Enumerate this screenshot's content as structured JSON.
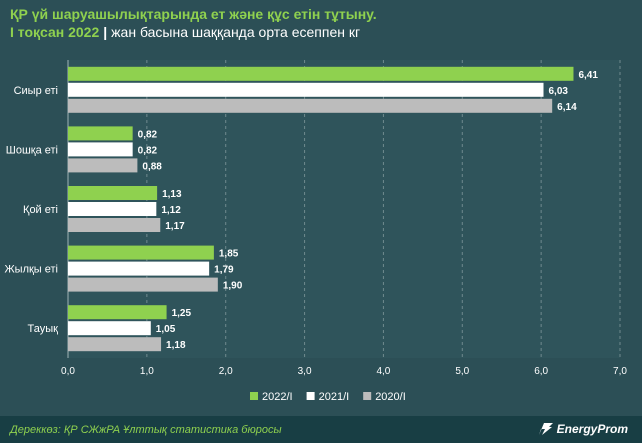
{
  "title": {
    "line1": "ҚР үй шаруашылықтарында ет және құс етін тұтыну.",
    "period": "I тоқсан 2022",
    "separator": "|",
    "unit": "жан басына шаққанда орта есеппен кг"
  },
  "chart_data": {
    "type": "bar",
    "orientation": "horizontal",
    "categories": [
      "Сиыр еті",
      "Шошқа еті",
      "Қой еті",
      "Жылқы еті",
      "Тауық"
    ],
    "series": [
      {
        "name": "2022/I",
        "color": "#8fd14f",
        "values": [
          6.41,
          0.82,
          1.13,
          1.85,
          1.25
        ],
        "labels": [
          "6,41",
          "0,82",
          "1,13",
          "1,85",
          "1,25"
        ]
      },
      {
        "name": "2021/I",
        "color": "#ffffff",
        "values": [
          6.03,
          0.82,
          1.12,
          1.79,
          1.05
        ],
        "labels": [
          "6,03",
          "0,82",
          "1,12",
          "1,79",
          "1,05"
        ]
      },
      {
        "name": "2020/I",
        "color": "#bcbcbc",
        "values": [
          6.14,
          0.88,
          1.17,
          1.9,
          1.18
        ],
        "labels": [
          "6,14",
          "0,88",
          "1,17",
          "1,90",
          "1,18"
        ]
      }
    ],
    "xlim": [
      0,
      7
    ],
    "xticks": [
      0,
      1,
      2,
      3,
      4,
      5,
      6,
      7
    ],
    "xtick_labels": [
      "0,0",
      "1,0",
      "2,0",
      "3,0",
      "4,0",
      "5,0",
      "6,0",
      "7,0"
    ],
    "grid": "vertical dashed",
    "legend": "bottom-center"
  },
  "footer": {
    "source": "Дереккөз: ҚР СЖжРА Ұлттық статистика бюросы",
    "brand": "EnergyProm"
  }
}
